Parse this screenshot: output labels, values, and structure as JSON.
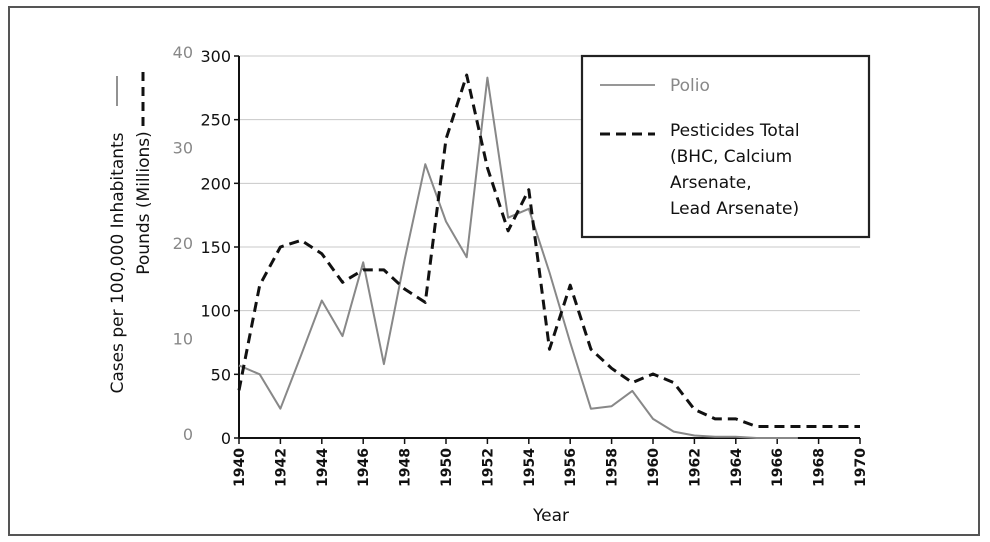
{
  "chart_data": {
    "type": "line",
    "title": "",
    "xlabel": "Year",
    "ylabel_primary": "Cases per 100,000 Inhabitants",
    "ylabel_secondary": "Pounds (Millions)",
    "xlim": [
      1940,
      1970
    ],
    "ylim_primary": [
      0,
      300
    ],
    "ylim_secondary": [
      0,
      40
    ],
    "x_ticks": [
      1940,
      1942,
      1944,
      1946,
      1948,
      1950,
      1952,
      1954,
      1956,
      1958,
      1960,
      1962,
      1964,
      1966,
      1968,
      1970
    ],
    "y_ticks_primary": [
      0,
      50,
      100,
      150,
      200,
      250,
      300
    ],
    "y_ticks_secondary": [
      0,
      10,
      20,
      30,
      40
    ],
    "legend_position": "top-right",
    "series": [
      {
        "name": "Polio",
        "style": "solid",
        "color": "#888888",
        "x": [
          1940,
          1941,
          1942,
          1943,
          1944,
          1945,
          1946,
          1947,
          1948,
          1949,
          1950,
          1951,
          1952,
          1953,
          1954,
          1955,
          1956,
          1957,
          1958,
          1959,
          1960,
          1961,
          1962,
          1963,
          1964,
          1965,
          1966,
          1967
        ],
        "values": [
          57,
          50,
          23,
          65,
          108,
          80,
          138,
          58,
          140,
          215,
          170,
          142,
          283,
          173,
          180,
          130,
          75,
          23,
          25,
          37,
          15,
          5,
          2,
          1,
          1,
          0,
          0,
          0
        ]
      },
      {
        "name": "Pesticides Total",
        "legend_lines": [
          "Pesticides Total",
          "(BHC, Calcium",
          "Arsenate,",
          "Lead Arsenate)"
        ],
        "style": "dashed",
        "color": "#111111",
        "x": [
          1940,
          1941,
          1942,
          1943,
          1944,
          1945,
          1946,
          1947,
          1948,
          1949,
          1950,
          1951,
          1952,
          1953,
          1954,
          1955,
          1956,
          1957,
          1958,
          1959,
          1960,
          1961,
          1962,
          1963,
          1964,
          1965,
          1966,
          1967,
          1968,
          1969,
          1970
        ],
        "values": [
          5,
          16,
          20,
          20.7,
          19.3,
          16.3,
          17.6,
          17.6,
          15.6,
          14.2,
          31.3,
          38,
          28.3,
          21.7,
          26,
          9.3,
          16,
          9.3,
          7.3,
          5.8,
          6.7,
          5.8,
          3,
          2,
          2,
          1.2,
          1.2,
          1.2,
          1.2,
          1.2,
          1.2
        ]
      }
    ]
  }
}
